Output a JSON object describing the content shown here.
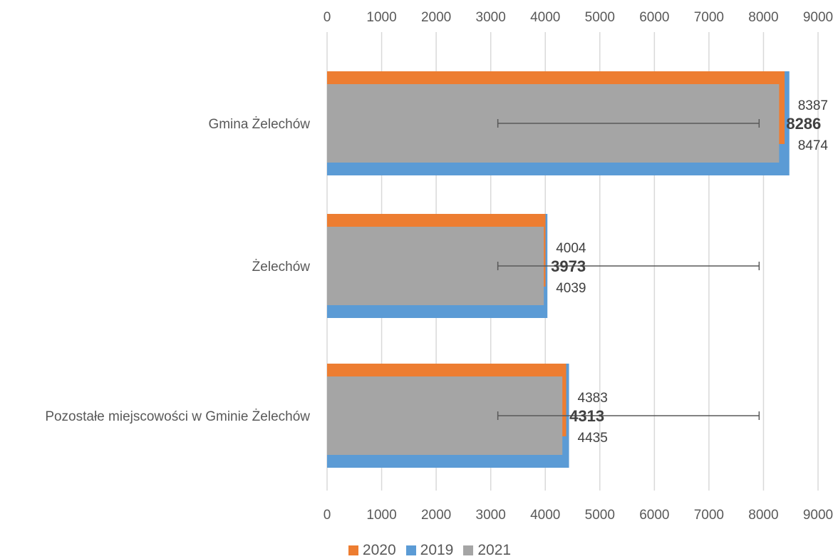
{
  "chart_data": {
    "type": "bar",
    "orientation": "horizontal",
    "categories": [
      "Gmina Żelechów",
      "Żelechów",
      "Pozostałe miejscowości w Gminie Żelechów"
    ],
    "series": [
      {
        "name": "2020",
        "color": "#ED7D31",
        "values": [
          8387,
          4004,
          4383
        ]
      },
      {
        "name": "2019",
        "color": "#5B9BD5",
        "values": [
          8474,
          4039,
          4435
        ]
      },
      {
        "name": "2021",
        "color": "#A5A5A5",
        "values": [
          8286,
          3973,
          4313
        ]
      }
    ],
    "xlim": [
      0,
      9000
    ],
    "x_ticks": [
      "0",
      "1000",
      "2000",
      "3000",
      "4000",
      "5000",
      "6000",
      "7000",
      "8000",
      "9000"
    ],
    "error_bars": [
      {
        "low": 3130,
        "high": 7920
      },
      {
        "low": 3130,
        "high": 7920
      },
      {
        "low": 3130,
        "high": 7920
      }
    ],
    "grid": true,
    "legend_position": "bottom",
    "title": "",
    "xlabel": "",
    "ylabel": ""
  }
}
